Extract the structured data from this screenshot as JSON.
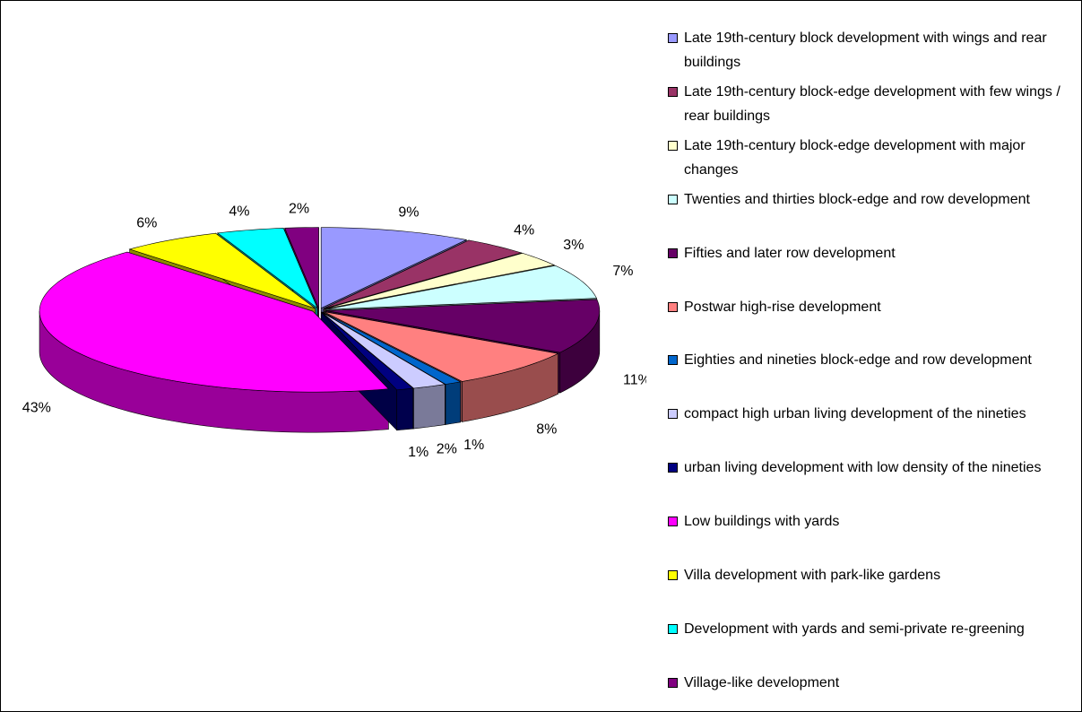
{
  "chart_data": {
    "type": "pie3d",
    "categories": [
      "Late 19th-century block development with wings and rear buildings",
      "Late 19th-century block-edge development with few wings / rear buildings",
      "Late 19th-century block-edge development with major changes",
      "Twenties and thirties block-edge and row development",
      "Fifties and later row development",
      "Postwar high-rise development",
      "Eighties and nineties block-edge and row development",
      "compact high urban living development of the nineties",
      "urban living development with low density of the nineties",
      "Low buildings with yards",
      "Villa development with park-like gardens",
      "Development with yards and semi-private re-greening",
      "Village-like development"
    ],
    "values": [
      9,
      4,
      3,
      7,
      11,
      8,
      1,
      2,
      1,
      43,
      6,
      4,
      2
    ],
    "value_labels": [
      "9%",
      "4%",
      "3%",
      "7%",
      "11%",
      "8%",
      "1%",
      "2%",
      "1%",
      "43%",
      "6%",
      "4%",
      "2%"
    ],
    "colors": [
      "#9999ff",
      "#993366",
      "#ffffcc",
      "#ccffff",
      "#660066",
      "#ff8080",
      "#0066cc",
      "#ccccff",
      "#000080",
      "#ff00ff",
      "#ffff00",
      "#00ffff",
      "#800080"
    ],
    "legend": "right"
  }
}
